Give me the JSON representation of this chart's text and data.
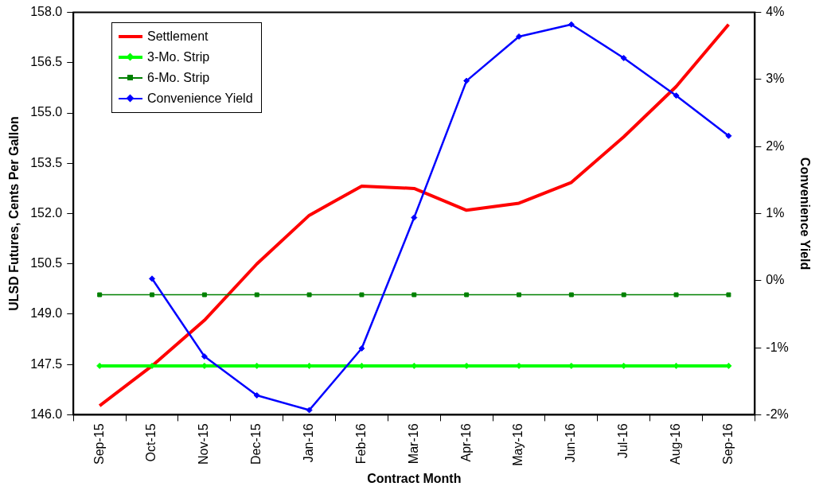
{
  "chart_data": {
    "type": "line",
    "xlabel": "Contract Month",
    "ylabel": "ULSD Futures, Cents Per Gallon",
    "y2label": "Convenience Yield",
    "categories": [
      "Sep-15",
      "Oct-15",
      "Nov-15",
      "Dec-15",
      "Jan-16",
      "Feb-16",
      "Mar-16",
      "Apr-16",
      "May-16",
      "Jun-16",
      "Jul-16",
      "Aug-16",
      "Sep-16"
    ],
    "series": [
      {
        "name": "Settlement",
        "color": "#ff0000",
        "marker": "none",
        "values": [
          146.27,
          147.46,
          148.82,
          150.5,
          151.95,
          152.82,
          152.75,
          152.1,
          152.31,
          152.93,
          154.29,
          155.79,
          157.64
        ]
      },
      {
        "name": "3-Mo. Strip",
        "color": "#00ff00",
        "marker": "diamond",
        "values": [
          147.46,
          147.46,
          147.46,
          147.46,
          147.46,
          147.46,
          147.46,
          147.46,
          147.46,
          147.46,
          147.46,
          147.46,
          147.46
        ]
      },
      {
        "name": "6-Mo. Strip",
        "color": "#008000",
        "marker": "square",
        "values": [
          149.58,
          149.58,
          149.58,
          149.58,
          149.58,
          149.58,
          149.58,
          149.58,
          149.58,
          149.58,
          149.58,
          149.58,
          149.58
        ]
      },
      {
        "name": "Convenience Yield",
        "color": "#0000ff",
        "marker": "diamond",
        "axis": "y2",
        "values": [
          null,
          0.03,
          -1.13,
          -1.71,
          -1.93,
          -1.01,
          0.94,
          2.98,
          3.64,
          3.82,
          3.32,
          2.76,
          2.16
        ]
      }
    ],
    "ylim": [
      146,
      158
    ],
    "yticks": [
      {
        "value": 146,
        "label": "146.0"
      },
      {
        "value": 147.5,
        "label": "147.5"
      },
      {
        "value": 149,
        "label": "149.0"
      },
      {
        "value": 150.5,
        "label": "150.5"
      },
      {
        "value": 152,
        "label": "152.0"
      },
      {
        "value": 153.5,
        "label": "153.5"
      },
      {
        "value": 155,
        "label": "155.0"
      },
      {
        "value": 156.5,
        "label": "156.5"
      },
      {
        "value": 158,
        "label": "158.0"
      }
    ],
    "y2lim": [
      -2,
      4
    ],
    "y2ticks": [
      {
        "value": -2,
        "label": "-2%"
      },
      {
        "value": -1,
        "label": "-1%"
      },
      {
        "value": 0,
        "label": "0%"
      },
      {
        "value": 1,
        "label": "1%"
      },
      {
        "value": 2,
        "label": "2%"
      },
      {
        "value": 3,
        "label": "3%"
      },
      {
        "value": 4,
        "label": "4%"
      }
    ],
    "grid": false,
    "legend": "top left",
    "line_style": "solid"
  }
}
